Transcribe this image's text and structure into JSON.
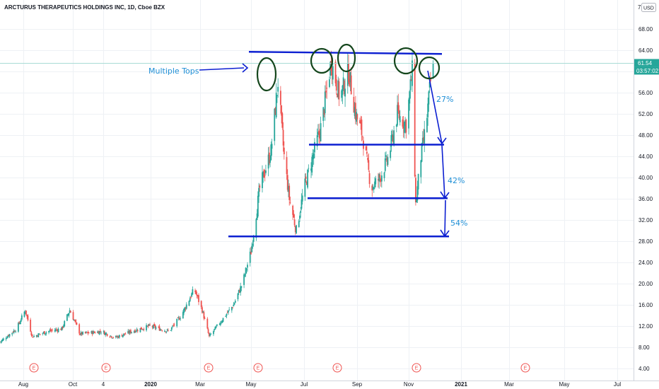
{
  "header": {
    "symbol_title": "ARCTURUS THERAPEUTICS HOLDINGS INC, 1D, Cboe BZX",
    "currency": "USD",
    "top_value": "7"
  },
  "price_axis": {
    "last_price": "61.54",
    "countdown": "03:57:02",
    "last_price_color": "#26a69a"
  },
  "chart_data": {
    "type": "candlestick",
    "title": "ARCTURUS THERAPEUTICS HOLDINGS INC, 1D, Cboe BZX",
    "ylim": [
      3.5,
      71.5
    ],
    "y_ticks": [
      "4.00",
      "8.00",
      "12.00",
      "16.00",
      "20.00",
      "24.00",
      "28.00",
      "32.00",
      "36.00",
      "40.00",
      "44.00",
      "48.00",
      "52.00",
      "56.00",
      "60.00",
      "64.00",
      "68.00"
    ],
    "x_ticks": [
      "Aug",
      "Oct",
      "4",
      "2020",
      "Mar",
      "May",
      "Jul",
      "Sep",
      "Nov",
      "2021",
      "Mar",
      "May",
      "Jul"
    ],
    "bold_x_ticks": [
      "2020",
      "2021"
    ],
    "earnings_markers": [
      "E",
      "E",
      "E",
      "E",
      "E",
      "E",
      "E"
    ],
    "approx_close_path": [
      [
        "2019-07-22",
        9.0
      ],
      [
        "2019-08-10",
        11.5
      ],
      [
        "2019-08-20",
        15.0
      ],
      [
        "2019-08-28",
        10.0
      ],
      [
        "2019-09-15",
        11.0
      ],
      [
        "2019-10-01",
        11.5
      ],
      [
        "2019-10-10",
        15.0
      ],
      [
        "2019-10-22",
        10.5
      ],
      [
        "2019-11-15",
        11.0
      ],
      [
        "2019-12-01",
        9.8
      ],
      [
        "2019-12-20",
        11.0
      ],
      [
        "2020-01-10",
        12.0
      ],
      [
        "2020-02-01",
        11.0
      ],
      [
        "2020-02-15",
        14.0
      ],
      [
        "2020-03-01",
        19.0
      ],
      [
        "2020-03-10",
        15.0
      ],
      [
        "2020-03-18",
        10.0
      ],
      [
        "2020-04-01",
        13.0
      ],
      [
        "2020-04-15",
        16.0
      ],
      [
        "2020-04-25",
        20.0
      ],
      [
        "2020-05-05",
        26.0
      ],
      [
        "2020-05-15",
        38.0
      ],
      [
        "2020-05-28",
        45.0
      ],
      [
        "2020-06-05",
        58.0
      ],
      [
        "2020-06-12",
        44.0
      ],
      [
        "2020-06-18",
        36.0
      ],
      [
        "2020-06-26",
        30.0
      ],
      [
        "2020-07-05",
        38.0
      ],
      [
        "2020-07-15",
        44.0
      ],
      [
        "2020-07-25",
        50.0
      ],
      [
        "2020-08-05",
        62.0
      ],
      [
        "2020-08-15",
        55.0
      ],
      [
        "2020-08-25",
        60.0
      ],
      [
        "2020-09-02",
        52.0
      ],
      [
        "2020-09-10",
        48.0
      ],
      [
        "2020-09-20",
        38.0
      ],
      [
        "2020-09-30",
        40.0
      ],
      [
        "2020-10-10",
        44.0
      ],
      [
        "2020-10-20",
        52.0
      ],
      [
        "2020-10-30",
        50.0
      ],
      [
        "2020-11-06",
        60.0
      ],
      [
        "2020-11-10",
        35.0
      ],
      [
        "2020-11-16",
        44.0
      ],
      [
        "2020-11-22",
        50.0
      ],
      [
        "2020-11-27",
        58.0
      ],
      [
        "2020-11-30",
        61.54
      ]
    ],
    "last_close": 61.54
  },
  "drawings": {
    "annotation_label": "Multiple Tops",
    "pct_labels": [
      "27%",
      "42%",
      "54%"
    ],
    "line_color": "#0c1fd1",
    "circle_color": "#14461c",
    "text_color": "#1f8fd6",
    "horizontal_levels": [
      63.5,
      46.2,
      36.1,
      28.9
    ]
  },
  "colors": {
    "up": "#26a69a",
    "down": "#ef5350",
    "grid": "#eef1f5"
  }
}
